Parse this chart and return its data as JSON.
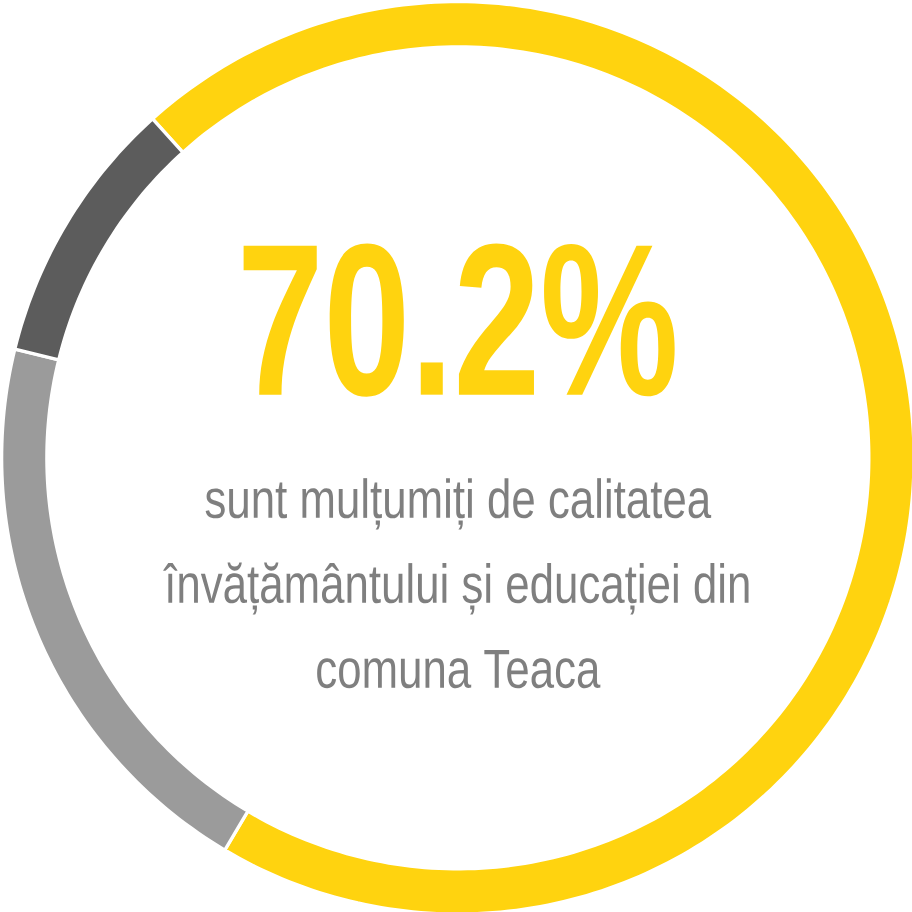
{
  "chart_data": {
    "type": "donut",
    "title": "70.2%",
    "subtitle": "sunt mulțumiți de calitatea învățământului și educației din comuna Teaca",
    "categories": [
      null,
      null,
      null
    ],
    "values": [
      70.2,
      20.3,
      9.5
    ],
    "colors": [
      "#ffd30f",
      "#9b9b9b",
      "#5c5c5c"
    ]
  }
}
